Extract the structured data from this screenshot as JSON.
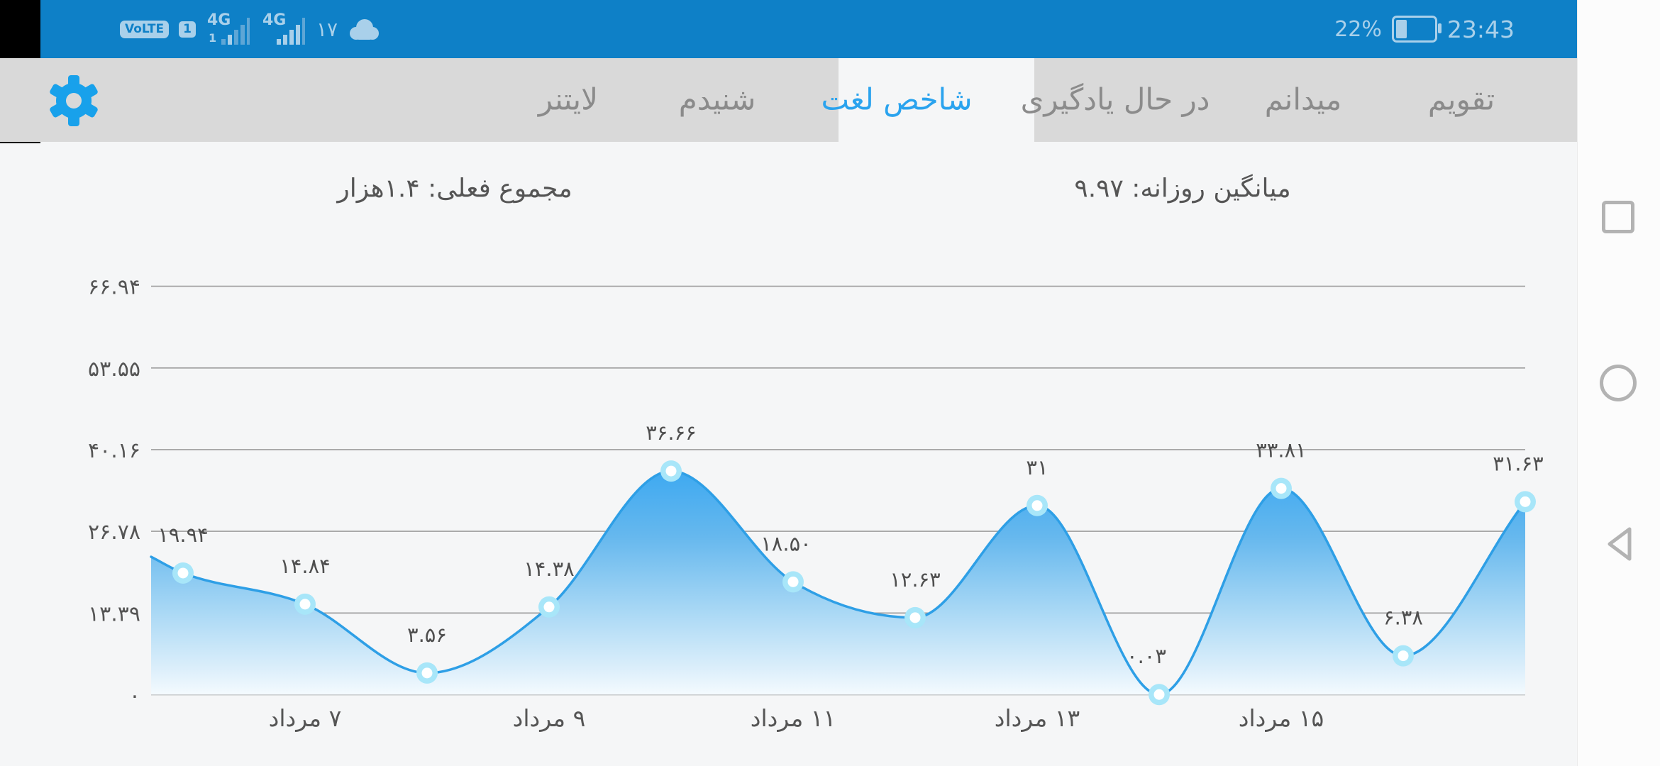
{
  "status_bar": {
    "volte_label": "VoLTE",
    "sim_label": "1",
    "network_1": {
      "label": "4G",
      "sub": "1"
    },
    "network_2": {
      "label": "4G"
    },
    "notification_count": "۱۷",
    "battery_percent": "22%",
    "time": "23:43"
  },
  "tab_bar": {
    "tabs": [
      {
        "label": "تقویم",
        "selected": false
      },
      {
        "label": "میدانم",
        "selected": false
      },
      {
        "label": "در حال یادگیری",
        "selected": false
      },
      {
        "label": "شاخص لغت",
        "selected": true
      },
      {
        "label": "شنیدم",
        "selected": false
      },
      {
        "label": "لایتنر",
        "selected": false
      }
    ]
  },
  "stats": {
    "daily_average": "میانگین روزانه: ۹.۹۷",
    "current_total": "مجموع فعلی: ۱.۴هزار"
  },
  "chart_data": {
    "type": "area",
    "title": "",
    "x_unit": "مرداد",
    "values": [
      19.94,
      14.84,
      3.56,
      14.38,
      36.66,
      18.5,
      12.63,
      31,
      0.03,
      33.81,
      6.38,
      31.63
    ],
    "point_labels": [
      "۱۹.۹۴",
      "۱۴.۸۴",
      "۳.۵۶",
      "۱۴.۳۸",
      "۳۶.۶۶",
      "۱۸.۵۰",
      "۱۲.۶۳",
      "۳۱",
      "۰.۰۳",
      "۳۳.۸۱",
      "۶.۳۸",
      "۳۱.۶۳"
    ],
    "x_tick_labels": [
      "۷ مرداد",
      "۹ مرداد",
      "۱۱ مرداد",
      "۱۳ مرداد",
      "۱۵ مرداد"
    ],
    "x_tick_point_indices": [
      1,
      3,
      5,
      7,
      9
    ],
    "y_ticks": [
      {
        "value": 0,
        "label": "۰"
      },
      {
        "value": 13.39,
        "label": "۱۳.۳۹"
      },
      {
        "value": 26.78,
        "label": "۲۶.۷۸"
      },
      {
        "value": 40.16,
        "label": "۴۰.۱۶"
      },
      {
        "value": 53.55,
        "label": "۵۳.۵۵"
      },
      {
        "value": 66.94,
        "label": "۶۶.۹۴"
      }
    ],
    "ylim": [
      0,
      66.94
    ],
    "left_edge_value": 22.6,
    "grid": true,
    "legend": "none",
    "colors": {
      "line": "#2e9fe6",
      "marker_ring": "#a8e6f9",
      "marker_center": "#ffffff",
      "fill_top": "#2ba2f2",
      "fill_bottom": "#f5fbfe",
      "grid": "#9c9c9c",
      "label_text": "#4f4f4f",
      "accent_blue": "#18a1eb",
      "status_bar_blue": "#0e80c7"
    }
  }
}
